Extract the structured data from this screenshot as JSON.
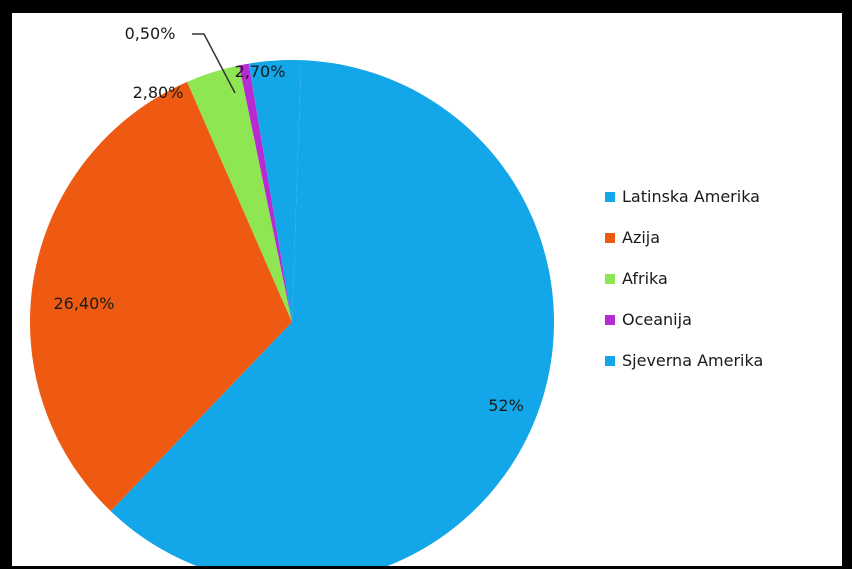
{
  "chart_data": {
    "type": "pie",
    "labels": [
      "Latinska Amerika",
      "Azija",
      "Afrika",
      "Oceanija",
      "Sjeverna Amerika"
    ],
    "values": [
      52,
      26.4,
      2.8,
      0.5,
      2.7
    ],
    "value_labels": [
      "52%",
      "26,40%",
      "2,80%",
      "0,50%",
      "2,70%"
    ],
    "colors": [
      "#13a6e8",
      "#ee5a11",
      "#8ee653",
      "#b82ad2",
      "#13a6e8"
    ],
    "label_colors": [
      "#1a1a1a",
      "#1a1a1a",
      "#1a1a1a",
      "#1a1a1a",
      "#e23c2a"
    ],
    "legend_position": "right"
  }
}
